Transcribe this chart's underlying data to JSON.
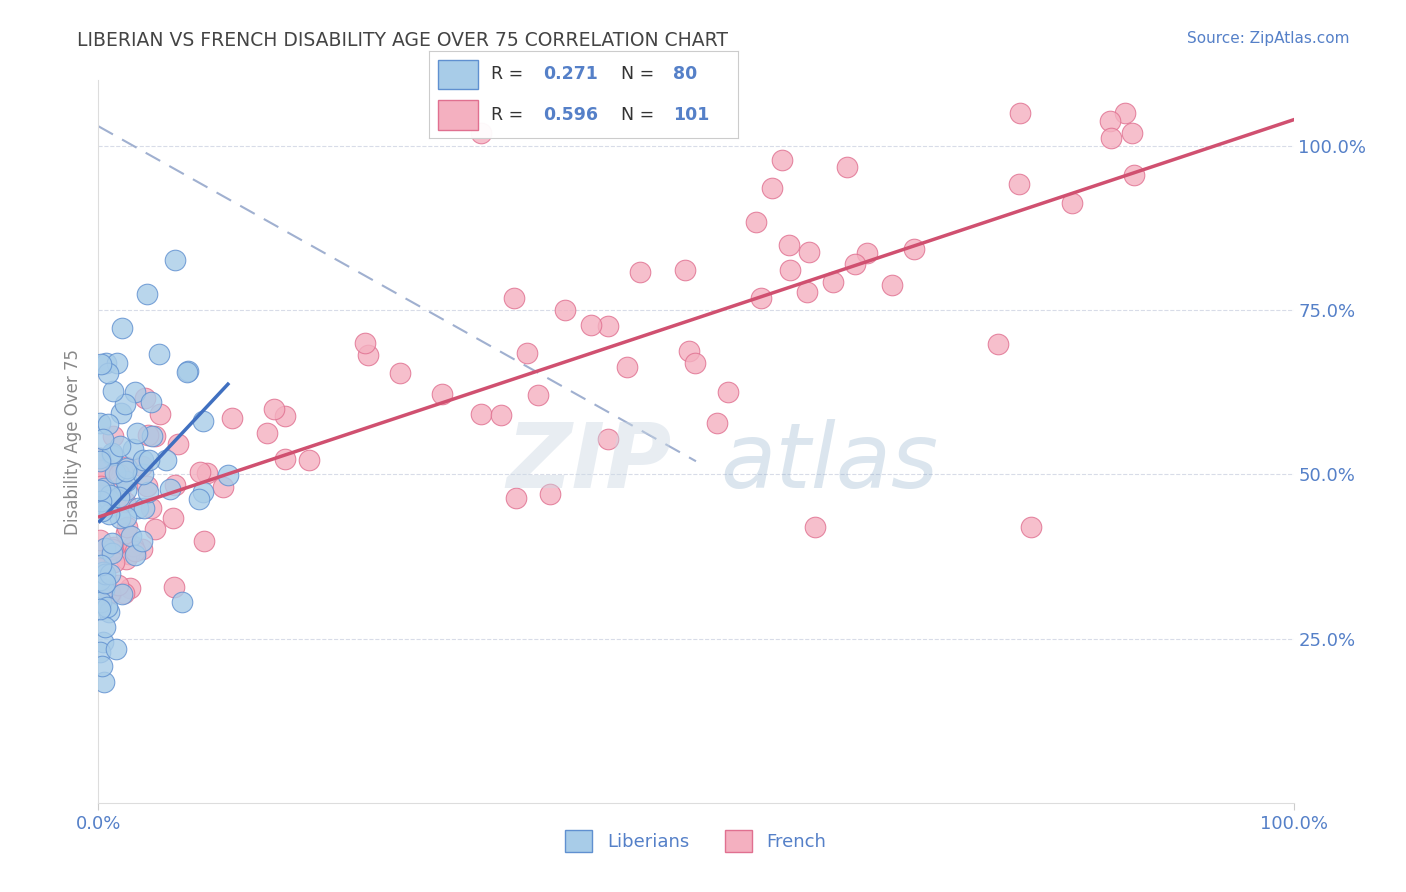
{
  "title": "LIBERIAN VS FRENCH DISABILITY AGE OVER 75 CORRELATION CHART",
  "source": "Source: ZipAtlas.com",
  "ylabel": "Disability Age Over 75",
  "liberian_R": 0.271,
  "liberian_N": 80,
  "french_R": 0.596,
  "french_N": 101,
  "liberian_color": "#a8cce8",
  "french_color": "#f4b0c0",
  "liberian_edge_color": "#6090d0",
  "french_edge_color": "#e07090",
  "liberian_trend_color": "#4070c0",
  "french_trend_color": "#d05070",
  "dashed_line_color": "#a0b0d0",
  "watermark_color": "#d0dce8",
  "background_color": "#ffffff",
  "grid_color": "#d8dce8",
  "title_color": "#444444",
  "axis_color": "#5580c8",
  "axis_label_color": "#888888",
  "xlim": [
    0.0,
    1.0
  ],
  "ylim": [
    0.0,
    1.1
  ],
  "ytick_positions": [
    0.25,
    0.5,
    0.75,
    1.0
  ],
  "ytick_labels": [
    "25.0%",
    "50.0%",
    "75.0%",
    "100.0%"
  ],
  "xtick_positions": [
    0.0,
    1.0
  ],
  "xtick_labels": [
    "0.0%",
    "100.0%"
  ]
}
